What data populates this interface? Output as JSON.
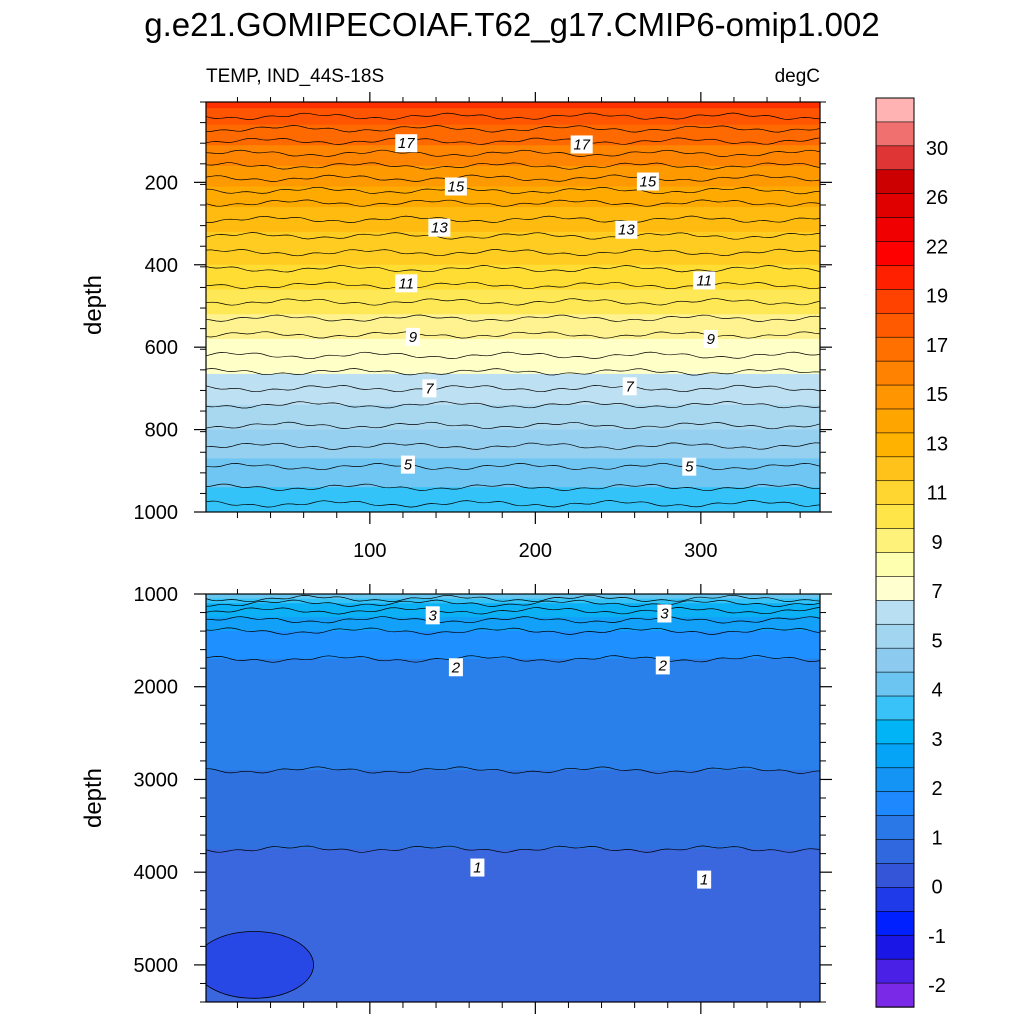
{
  "chart_data": {
    "type": "contour",
    "title": "g.e21.GOMIPECOIAF.T62_g17.CMIP6-omip1.002",
    "subtitle_left": "TEMP, IND_44S-18S",
    "subtitle_right": "degC",
    "panels": [
      {
        "name": "upper",
        "ylabel": "depth",
        "xlim": [
          1,
          372
        ],
        "ylim": [
          1000,
          5
        ],
        "x_ticks": [
          100,
          200,
          300
        ],
        "y_ticks": [
          200,
          400,
          600,
          800,
          1000
        ],
        "x_ticks_labeled": true,
        "band_fill": [
          {
            "top": 5,
            "bottom": 20,
            "color": "#ff3000"
          },
          {
            "top": 20,
            "bottom": 60,
            "color": "#ff5500"
          },
          {
            "top": 60,
            "bottom": 110,
            "color": "#ff6a00"
          },
          {
            "top": 110,
            "bottom": 160,
            "color": "#ff8500"
          },
          {
            "top": 160,
            "bottom": 210,
            "color": "#ff9900"
          },
          {
            "top": 210,
            "bottom": 260,
            "color": "#ffaa00"
          },
          {
            "top": 260,
            "bottom": 320,
            "color": "#ffbb10"
          },
          {
            "top": 320,
            "bottom": 400,
            "color": "#ffcc22"
          },
          {
            "top": 400,
            "bottom": 460,
            "color": "#ffdd33"
          },
          {
            "top": 460,
            "bottom": 520,
            "color": "#ffe855"
          },
          {
            "top": 520,
            "bottom": 580,
            "color": "#fff290"
          },
          {
            "top": 580,
            "bottom": 665,
            "color": "#ffffc8"
          },
          {
            "top": 665,
            "bottom": 740,
            "color": "#bde0f2"
          },
          {
            "top": 740,
            "bottom": 800,
            "color": "#a8d8f0"
          },
          {
            "top": 800,
            "bottom": 870,
            "color": "#95d0f0"
          },
          {
            "top": 870,
            "bottom": 940,
            "color": "#6fc6f2"
          },
          {
            "top": 940,
            "bottom": 1000,
            "color": "#33c3f8"
          }
        ],
        "contour_depths": [
          40,
          70,
          100,
          130,
          160,
          190,
          220,
          250,
          290,
          330,
          370,
          410,
          450,
          490,
          530,
          570,
          620,
          660,
          700,
          740,
          790,
          840,
          890,
          940,
          980
        ],
        "contour_labels": [
          {
            "text": "17",
            "x": 122,
            "y": 105
          },
          {
            "text": "17",
            "x": 228,
            "y": 108
          },
          {
            "text": "15",
            "x": 152,
            "y": 210
          },
          {
            "text": "15",
            "x": 268,
            "y": 198
          },
          {
            "text": "13",
            "x": 142,
            "y": 310
          },
          {
            "text": "13",
            "x": 255,
            "y": 315
          },
          {
            "text": "11",
            "x": 122,
            "y": 445
          },
          {
            "text": "11",
            "x": 302,
            "y": 438
          },
          {
            "text": "9",
            "x": 126,
            "y": 575
          },
          {
            "text": "9",
            "x": 306,
            "y": 580
          },
          {
            "text": "7",
            "x": 136,
            "y": 700
          },
          {
            "text": "7",
            "x": 257,
            "y": 695
          },
          {
            "text": "5",
            "x": 123,
            "y": 885
          },
          {
            "text": "5",
            "x": 293,
            "y": 890
          }
        ]
      },
      {
        "name": "lower",
        "ylabel": "depth",
        "xlim": [
          1,
          372
        ],
        "ylim": [
          5400,
          1000
        ],
        "x_ticks": [
          100,
          200,
          300
        ],
        "y_ticks": [
          1000,
          2000,
          3000,
          4000,
          5000
        ],
        "x_ticks_labeled": false,
        "band_fill": [
          {
            "top": 1000,
            "bottom": 1050,
            "color": "#66c6f0"
          },
          {
            "top": 1050,
            "bottom": 1100,
            "color": "#33c3f8"
          },
          {
            "top": 1100,
            "bottom": 1250,
            "color": "#0cb0f5"
          },
          {
            "top": 1250,
            "bottom": 1400,
            "color": "#12a0f8"
          },
          {
            "top": 1400,
            "bottom": 1700,
            "color": "#1e90ff"
          },
          {
            "top": 1700,
            "bottom": 2900,
            "color": "#2a80ea"
          },
          {
            "top": 2900,
            "bottom": 3750,
            "color": "#2f72df"
          },
          {
            "top": 3750,
            "bottom": 5400,
            "color": "#3a66de"
          }
        ],
        "contour_depths": [
          1050,
          1100,
          1180,
          1280,
          1400,
          1700,
          2900,
          3750
        ],
        "deep_pool": {
          "x_center": 30,
          "depth_center": 5000,
          "x_radius": 36,
          "depth_radius": 360,
          "color": "#2848e6"
        },
        "contour_labels": [
          {
            "text": "3",
            "x": 138,
            "y": 1230
          },
          {
            "text": "3",
            "x": 278,
            "y": 1210
          },
          {
            "text": "2",
            "x": 152,
            "y": 1790
          },
          {
            "text": "2",
            "x": 277,
            "y": 1770
          },
          {
            "text": "1",
            "x": 165,
            "y": 3950
          },
          {
            "text": "1",
            "x": 302,
            "y": 4080
          }
        ]
      }
    ],
    "colorbar": {
      "labels": [
        "30",
        "26",
        "22",
        "19",
        "17",
        "15",
        "13",
        "11",
        "9",
        "7",
        "5",
        "4",
        "3",
        "2",
        "1",
        "0",
        "-1",
        "-2"
      ],
      "colors": [
        "#ffb3b3",
        "#f07070",
        "#e03535",
        "#cc0000",
        "#e00000",
        "#f00000",
        "#ff0000",
        "#ff2000",
        "#ff4200",
        "#ff5a00",
        "#ff7000",
        "#ff8200",
        "#ff9500",
        "#ffa500",
        "#ffb300",
        "#ffc21a",
        "#ffd52f",
        "#ffe548",
        "#fff27a",
        "#ffffb0",
        "#ffffcf",
        "#b8e0f2",
        "#a2d5ef",
        "#8ccbef",
        "#6cc5f0",
        "#38c2f8",
        "#00b4f5",
        "#05a4f6",
        "#1494f5",
        "#1e88ff",
        "#2a78e8",
        "#2f68df",
        "#3555d8",
        "#1f3ae8",
        "#0020ff",
        "#1a16e6",
        "#4a20e6",
        "#7a2ae6"
      ]
    }
  }
}
